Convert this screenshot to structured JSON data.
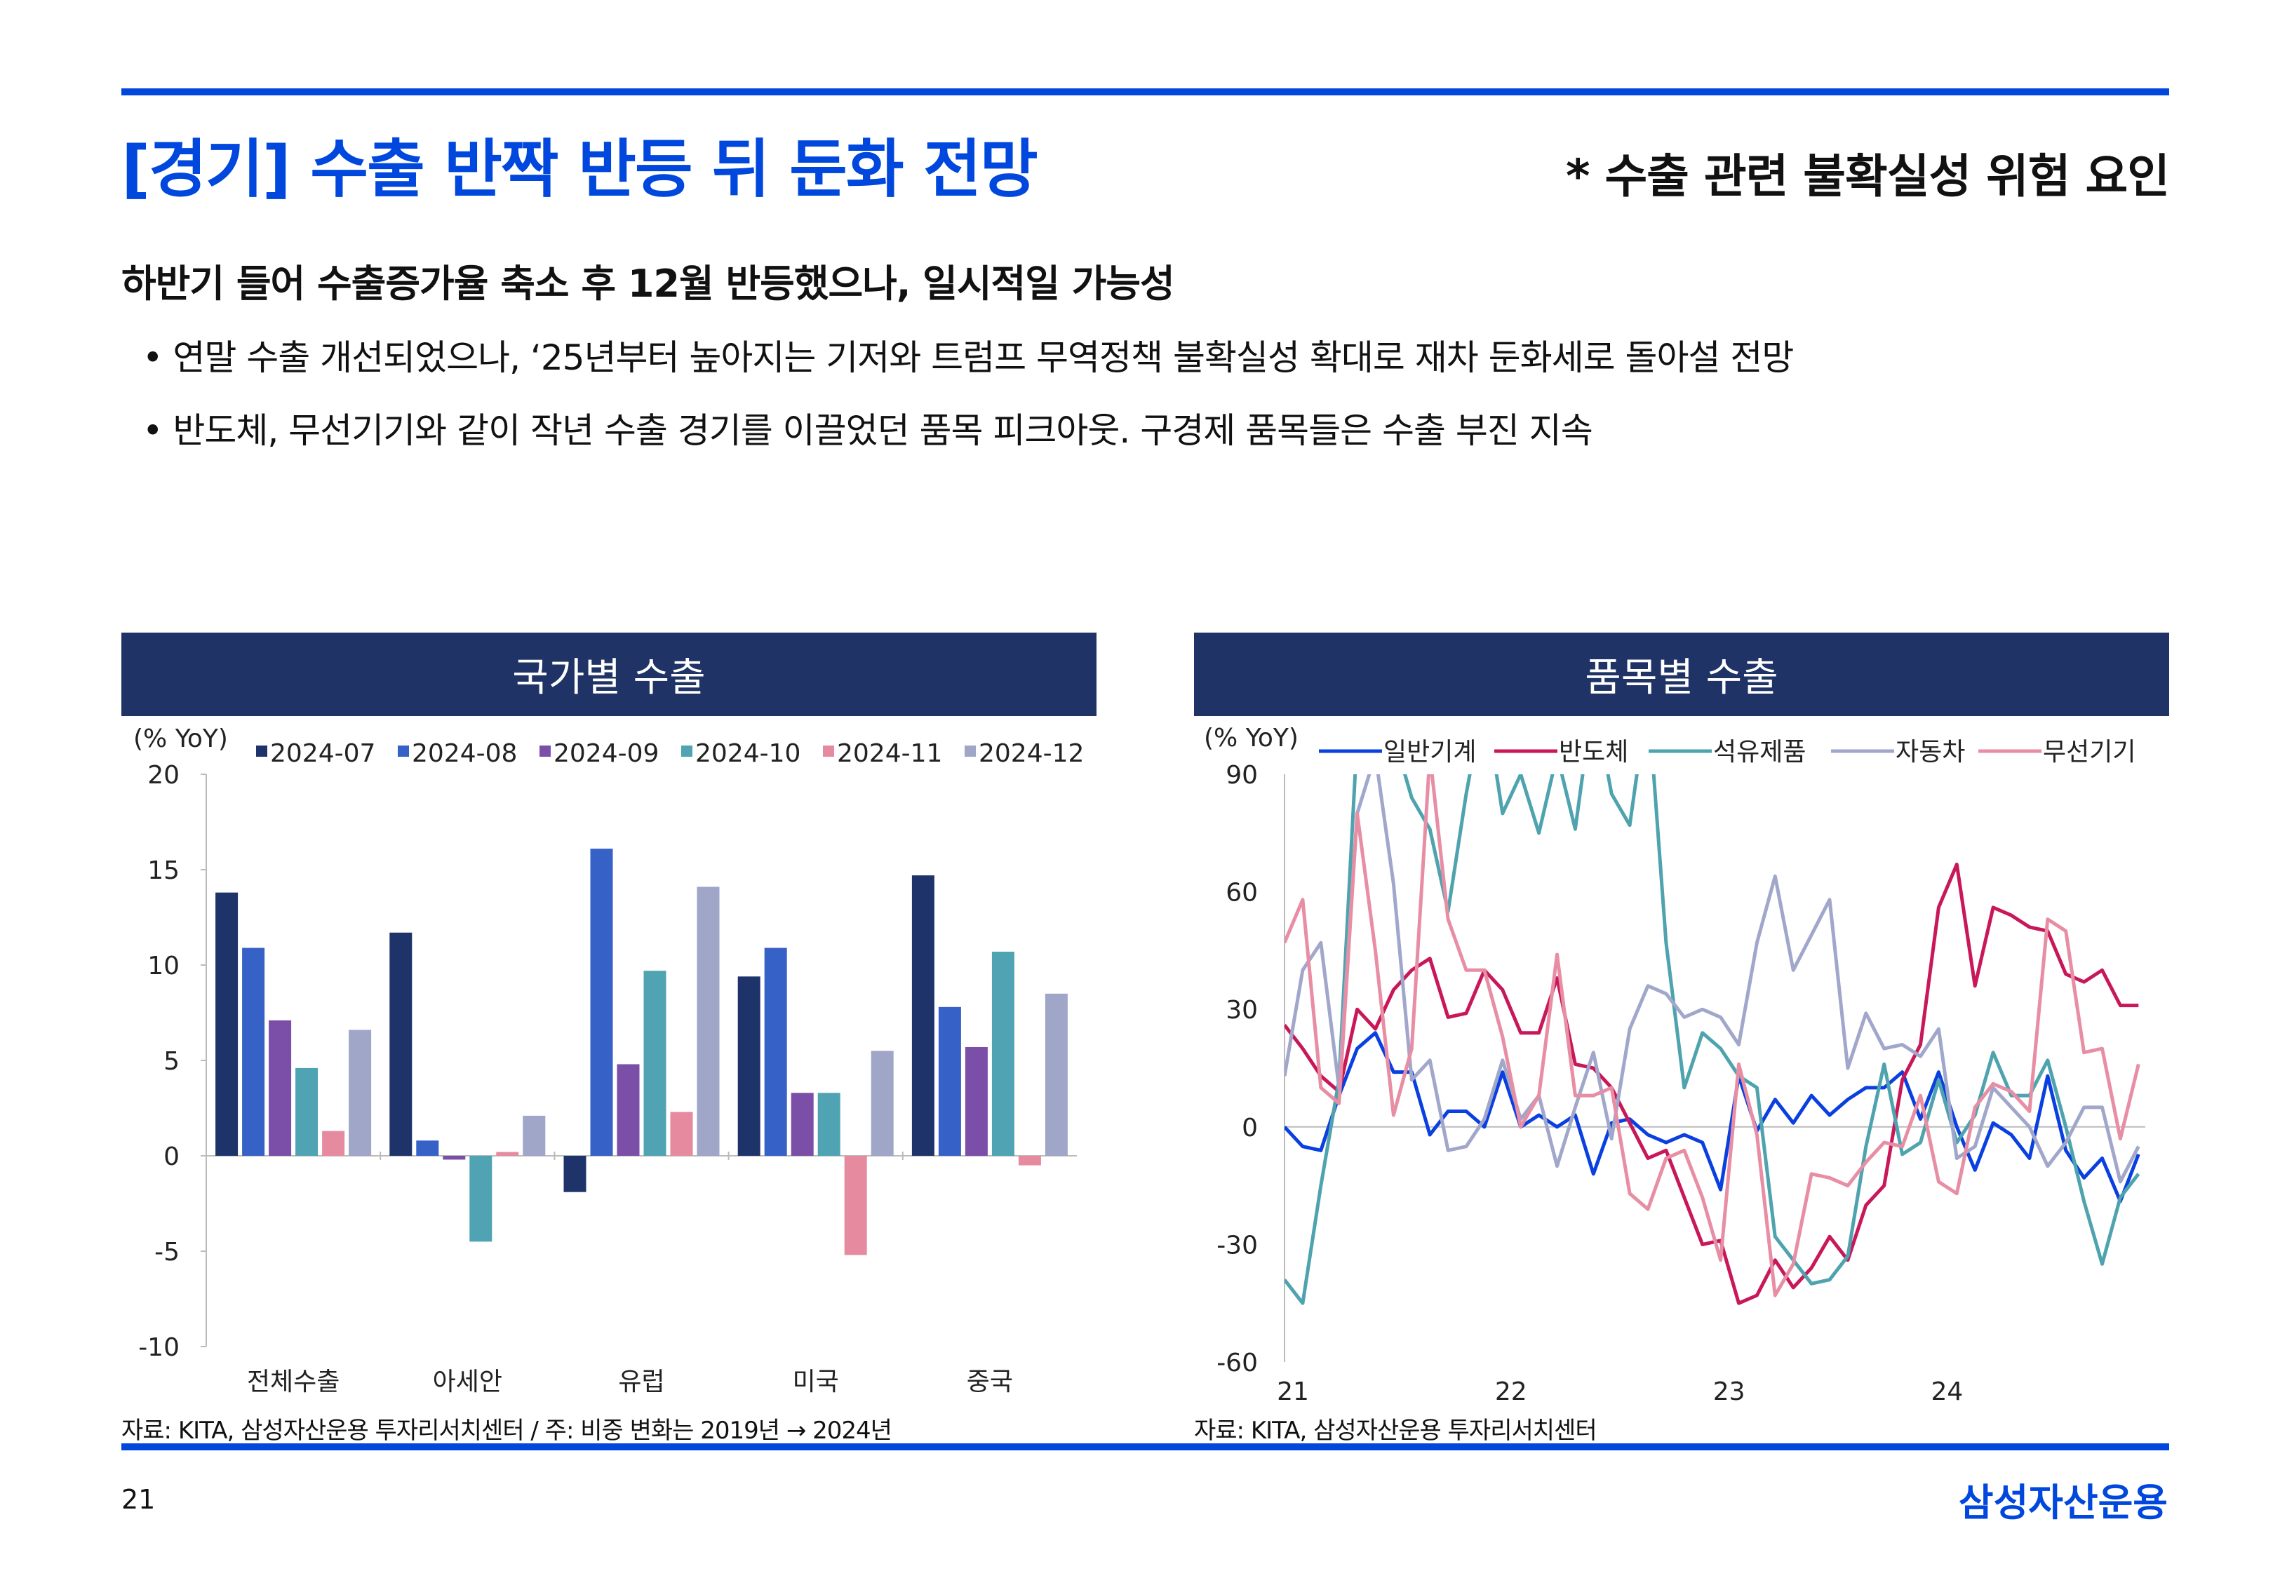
{
  "header": {
    "title": "[경기] 수출 반짝 반등 뒤 둔화 전망",
    "note": "* 수출 관련 불확실성 위험 요인"
  },
  "summary": {
    "subtitle": "하반기 들어 수출증가율 축소 후 12월 반등했으나, 일시적일 가능성",
    "bullets": [
      "• 연말 수출 개선되었으나, ‘25년부터 높아지는 기저와 트럼프 무역정책 불확실성 확대로 재차 둔화세로 돌아설 전망",
      "• 반도체, 무선기기와 같이 작년 수출 경기를 이끌었던 품목 피크아웃. 구경제 품목들은 수출 부진 지속"
    ]
  },
  "panels": [
    {
      "title": "국가별 수출",
      "source": "자료: KITA, 삼성자산운용 투자리서치센터 / 주: 비중 변화는 2019년 → 2024년"
    },
    {
      "title": "품목별 수출",
      "source": "자료: KITA, 삼성자산운용 투자리서치센터"
    }
  ],
  "footer": {
    "page": "21",
    "logo": "삼성자산운용"
  },
  "chart_data": [
    {
      "type": "bar",
      "title": "국가별 수출",
      "ylabel": "(% YoY)",
      "ylim": [
        -10,
        20
      ],
      "yticks": [
        "20",
        "15",
        "10",
        "5",
        "0",
        "-5",
        "-10"
      ],
      "categories": [
        "전체수출",
        "아세안",
        "유럽",
        "미국",
        "중국"
      ],
      "series": [
        {
          "name": "2024-07",
          "color": "#1f336b",
          "values": [
            13.8,
            11.7,
            -1.9,
            9.4,
            14.7
          ]
        },
        {
          "name": "2024-08",
          "color": "#3661c6",
          "values": [
            10.9,
            0.8,
            16.1,
            10.9,
            7.8
          ]
        },
        {
          "name": "2024-09",
          "color": "#7b4fa8",
          "values": [
            7.1,
            -0.2,
            4.8,
            3.3,
            5.7
          ]
        },
        {
          "name": "2024-10",
          "color": "#4fa3b3",
          "values": [
            4.6,
            -4.5,
            9.7,
            3.3,
            10.7
          ]
        },
        {
          "name": "2024-11",
          "color": "#e68aa0",
          "values": [
            1.3,
            0.2,
            2.3,
            -5.2,
            -0.5
          ]
        },
        {
          "name": "2024-12",
          "color": "#9fa6c8",
          "values": [
            6.6,
            2.1,
            14.1,
            5.5,
            8.5
          ]
        }
      ],
      "legend": "top"
    },
    {
      "type": "line",
      "title": "품목별 수출",
      "ylabel": "(% YoY)",
      "ylim": [
        -60,
        90
      ],
      "yticks": [
        "90",
        "60",
        "30",
        "0",
        "-30",
        "-60"
      ],
      "x_start": "2021-01",
      "x_end": "2024-12",
      "xticks": [
        "21",
        "22",
        "23",
        "24"
      ],
      "series": [
        {
          "name": "일반기계",
          "color": "#0a3fe0",
          "values": [
            0,
            -5,
            -6,
            8,
            20,
            24,
            14,
            14,
            -2,
            4,
            4,
            0,
            14,
            0,
            3,
            0,
            3,
            -12,
            1,
            2,
            -2,
            -4,
            -2,
            -4,
            -16,
            13,
            -1,
            7,
            1,
            8,
            3,
            7,
            10,
            10,
            14,
            2,
            14,
            0,
            -11,
            1,
            -2,
            -8,
            13,
            -6,
            -13,
            -8,
            -19,
            -7
          ]
        },
        {
          "name": "반도체",
          "color": "#c8185a",
          "values": [
            26,
            20,
            13,
            9,
            30,
            25,
            35,
            40,
            43,
            28,
            29,
            40,
            35,
            24,
            24,
            38,
            16,
            15,
            10,
            1,
            -8,
            -6,
            -18,
            -30,
            -29,
            -45,
            -43,
            -34,
            -41,
            -36,
            -28,
            -34,
            -20,
            -15,
            12,
            21,
            56,
            67,
            36,
            56,
            54,
            51,
            50,
            39,
            37,
            40,
            31,
            31
          ]
        },
        {
          "name": "석유제품",
          "color": "#4ea3ae",
          "values": [
            -39,
            -45,
            -15,
            12,
            100,
            110,
            100,
            84,
            76,
            55,
            85,
            110,
            80,
            90,
            75,
            95,
            76,
            110,
            85,
            77,
            110,
            47,
            10,
            24,
            20,
            13,
            10,
            -28,
            -34,
            -40,
            -39,
            -33,
            -5,
            16,
            -7,
            -4,
            12,
            -4,
            3,
            19,
            8,
            8,
            17,
            0,
            -19,
            -35,
            -18,
            -12
          ]
        },
        {
          "name": "자동차",
          "color": "#a1a7cb",
          "values": [
            13,
            40,
            47,
            10,
            80,
            95,
            62,
            12,
            17,
            -6,
            -5,
            2,
            17,
            2,
            8,
            -10,
            5,
            19,
            -3,
            25,
            36,
            34,
            28,
            30,
            28,
            21,
            47,
            64,
            40,
            49,
            58,
            15,
            29,
            20,
            21,
            18,
            25,
            -8,
            -5,
            10,
            5,
            0,
            -10,
            -4,
            5,
            5,
            -14,
            -5
          ]
        },
        {
          "name": "무선기기",
          "color": "#e88ea4",
          "values": [
            47,
            58,
            10,
            6,
            80,
            45,
            3,
            20,
            95,
            53,
            40,
            40,
            23,
            0,
            8,
            44,
            8,
            8,
            10,
            -17,
            -21,
            -8,
            -6,
            -18,
            -34,
            16,
            -2,
            -43,
            -35,
            -12,
            -13,
            -15,
            -9,
            -4,
            -5,
            8,
            -14,
            -17,
            5,
            11,
            9,
            4,
            53,
            50,
            19,
            20,
            -3,
            16
          ]
        }
      ],
      "legend": "top"
    }
  ]
}
